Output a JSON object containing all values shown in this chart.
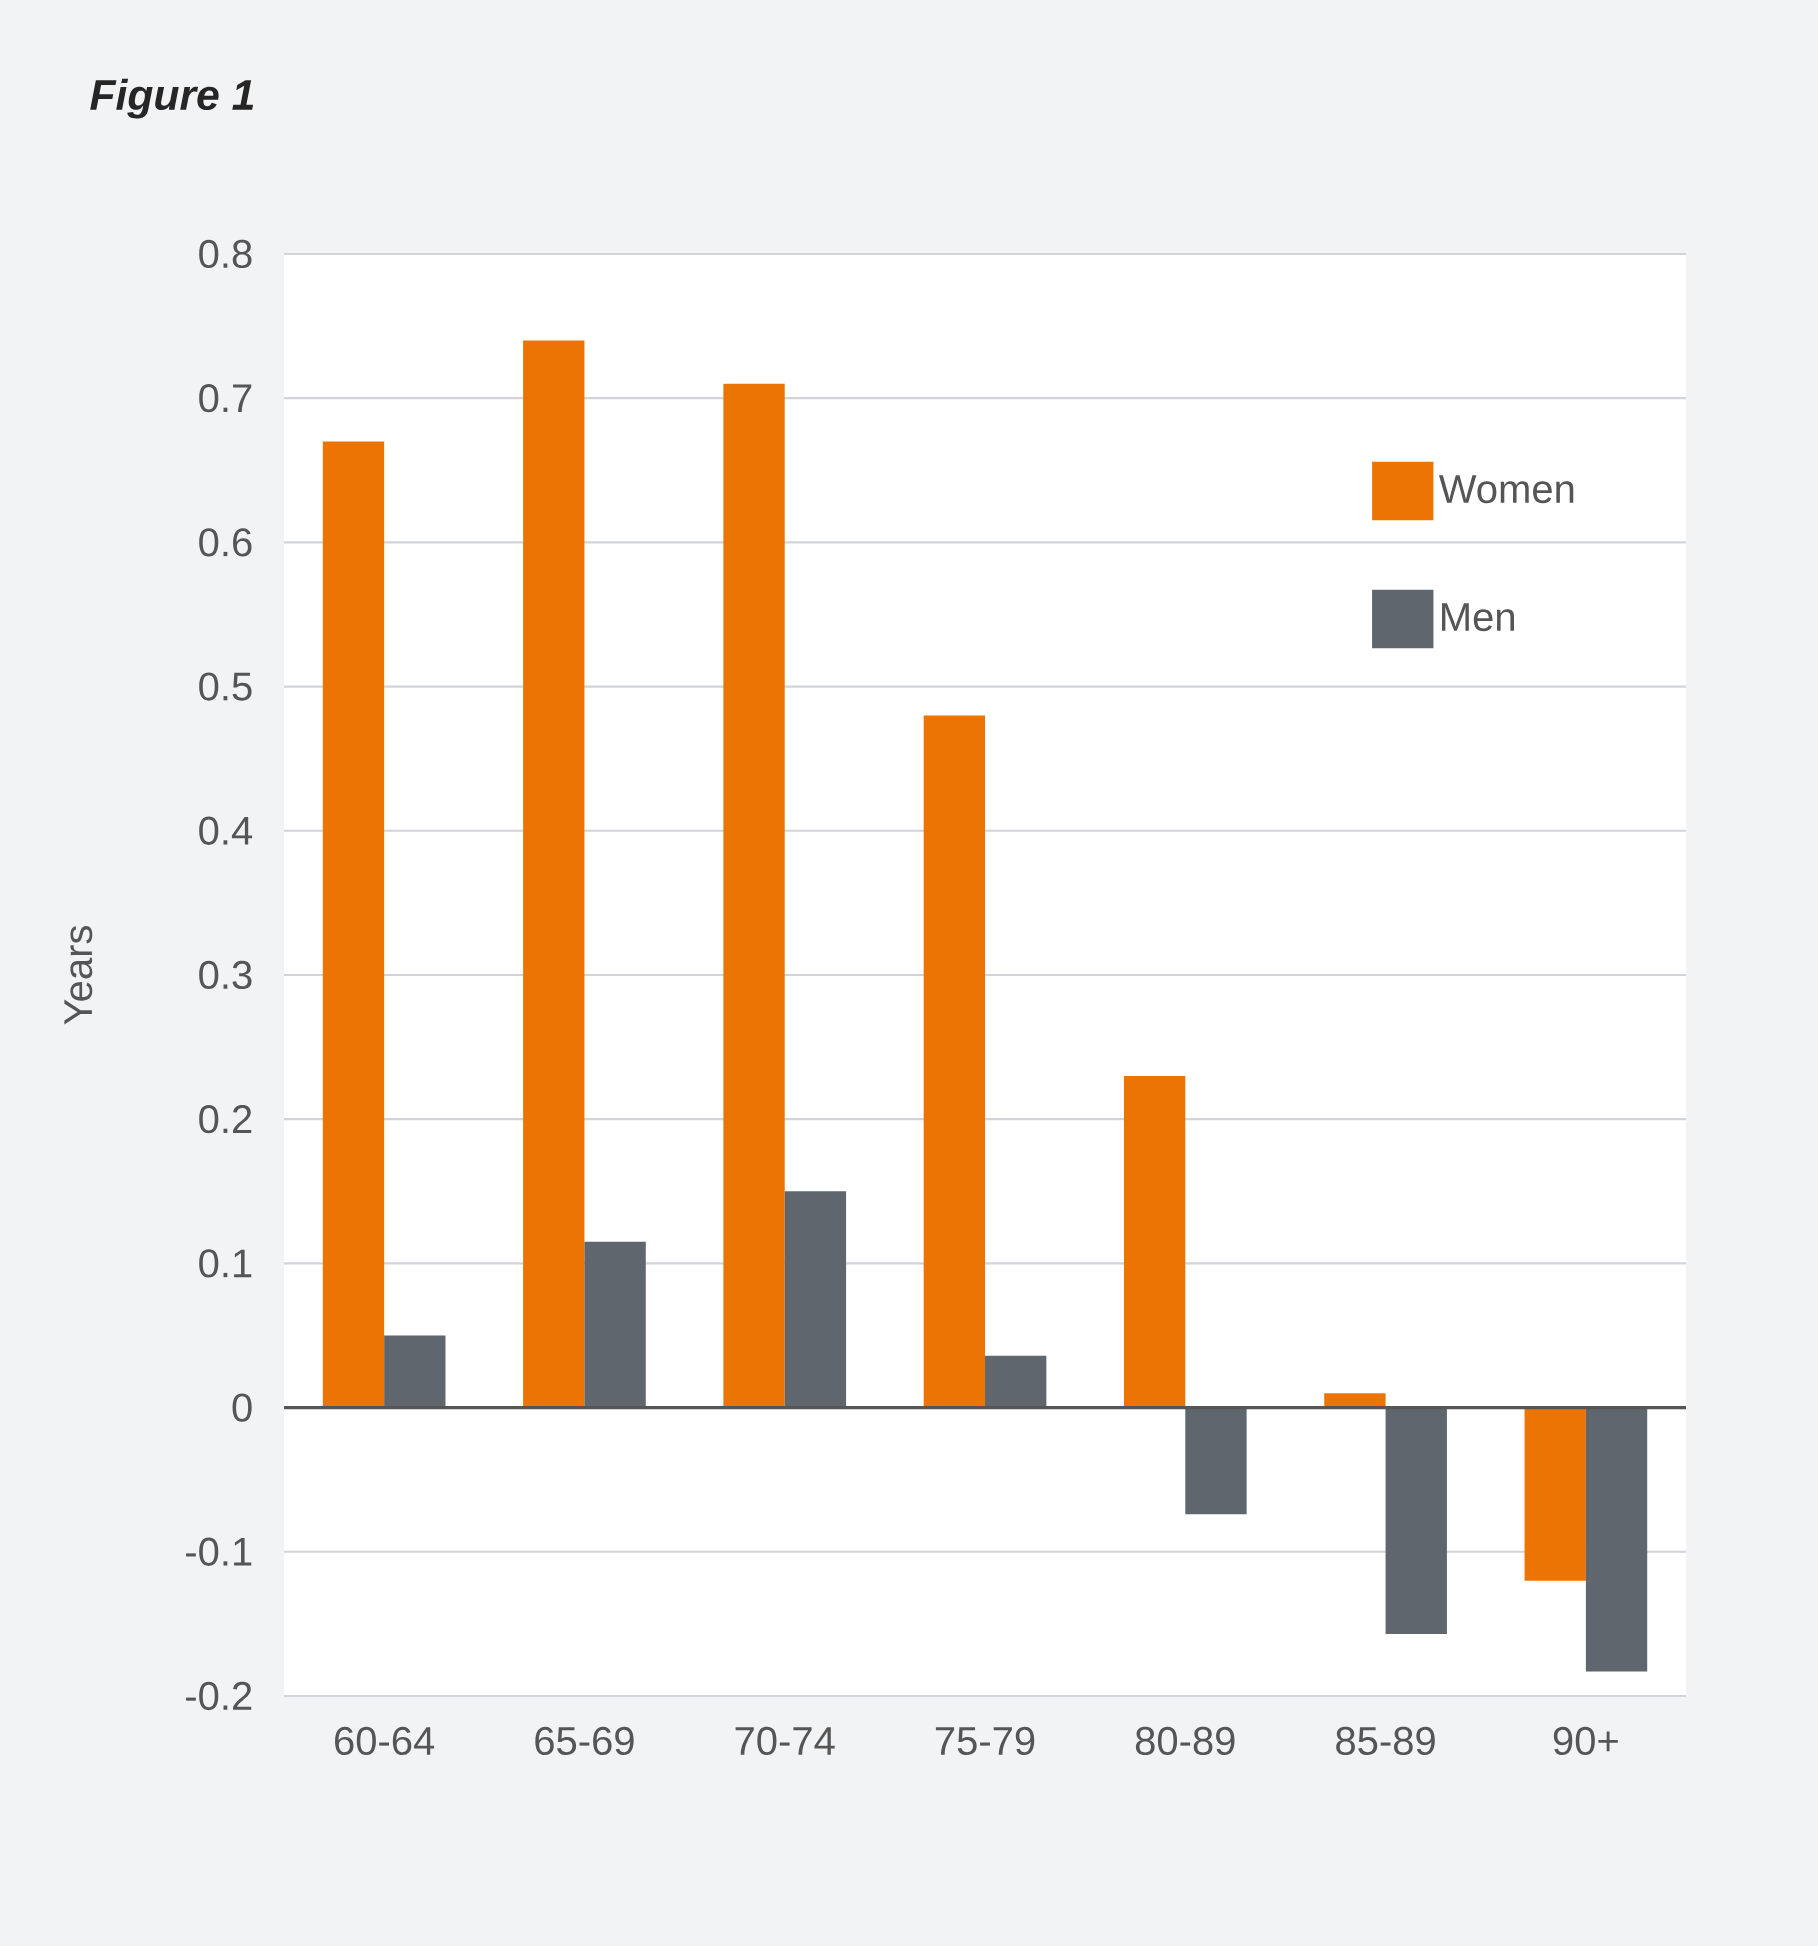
{
  "chart_data": {
    "type": "bar",
    "title": "Figure 1",
    "ylabel": "Years",
    "categories": [
      "60-64",
      "65-69",
      "70-74",
      "75-79",
      "80-89",
      "85-89",
      "90+"
    ],
    "series": [
      {
        "name": "Women",
        "color": "#ec7404",
        "values": [
          0.67,
          0.74,
          0.71,
          0.48,
          0.23,
          0.01,
          -0.12
        ]
      },
      {
        "name": "Men",
        "color": "#5f666d",
        "values": [
          0.05,
          0.115,
          0.15,
          0.036,
          -0.074,
          -0.157,
          -0.183
        ]
      }
    ],
    "ylim": [
      -0.2,
      0.8
    ],
    "yticks": [
      -0.2,
      -0.1,
      0,
      0.1,
      0.2,
      0.3,
      0.4,
      0.5,
      0.6,
      0.7,
      0.8
    ],
    "grid": "y",
    "legend": "top right"
  }
}
